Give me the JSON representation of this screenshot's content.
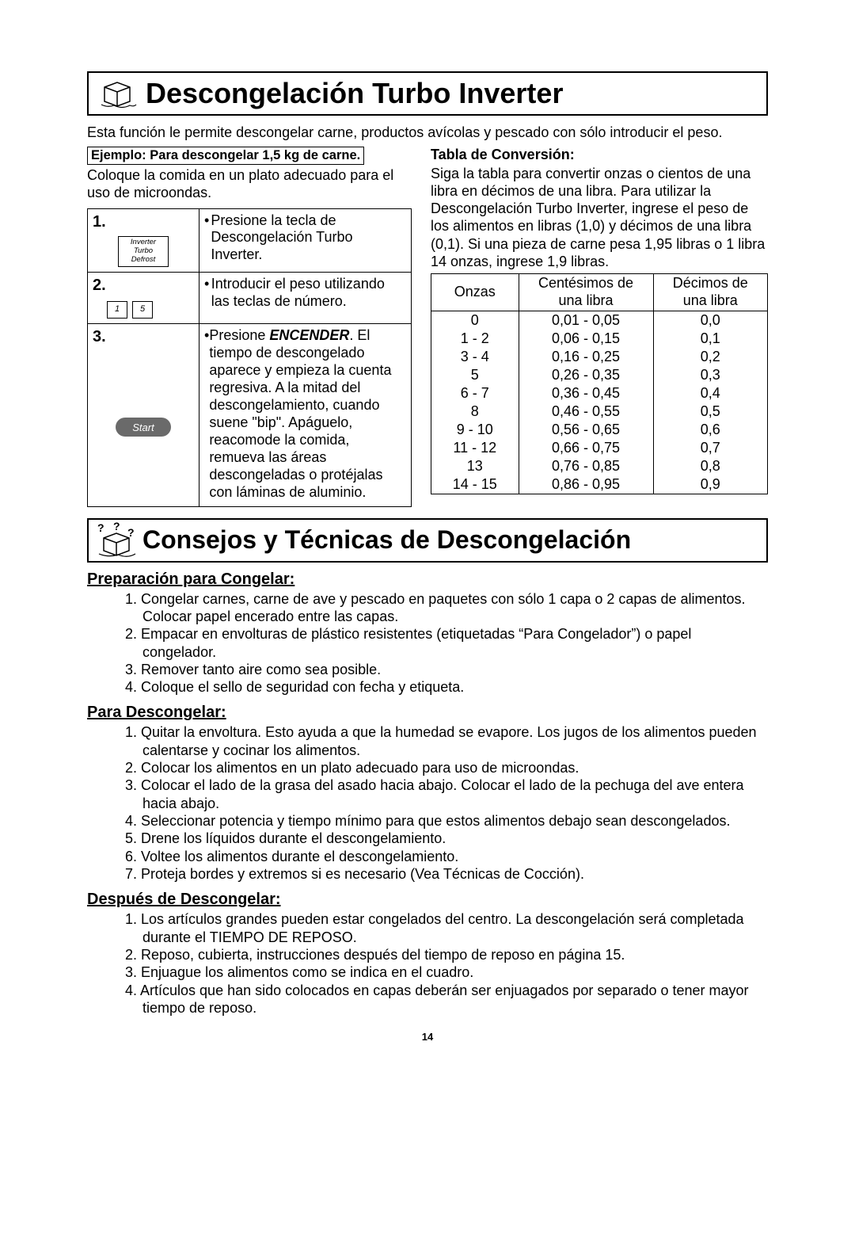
{
  "title1": "Descongelación Turbo Inverter",
  "intro": "Esta función le permite descongelar carne, productos avícolas y pescado con sólo introducir el peso.",
  "example_box": "Ejemplo: Para descongelar 1,5 kg de carne.",
  "sub_intro": "Coloque la comida en un plato adecuado para el uso de microondas.",
  "steps": {
    "s1": {
      "num": "1.",
      "btn_l1": "Inverter",
      "btn_l2": "Turbo",
      "btn_l3": "Defrost",
      "text": "Presione la tecla de Descongelación Turbo Inverter."
    },
    "s2": {
      "num": "2.",
      "k1": "1",
      "k2": "5",
      "text": "Introducir el peso utilizando las teclas de número."
    },
    "s3": {
      "num": "3.",
      "start": "Start",
      "pre": "Presione ",
      "bold": "ENCENDER",
      "post": ".",
      "rest": "El tiempo de descongelado aparece y empieza la cuenta regresiva. A la mitad del descongelamiento, cuando suene \"bip\". Apáguelo, reacomode la comida, remueva las áreas descongeladas o protéjalas con láminas de aluminio."
    }
  },
  "conv": {
    "heading": "Tabla de Conversión:",
    "intro": "Siga la tabla para convertir onzas o cientos de una libra en décimos de una libra. Para utilizar la Descongelación Turbo Inverter, ingrese el peso de los alimentos en libras (1,0) y décimos de una libra (0,1). Si una pieza de carne pesa 1,95 libras o 1 libra 14 onzas, ingrese 1,9 libras.",
    "h1": "Onzas",
    "h2a": "Centésimos de",
    "h2b": "una libra",
    "h3a": "Décimos de",
    "h3b": "una libra",
    "rows": [
      {
        "a": "0",
        "b": "0,01 - 0,05",
        "c": "0,0"
      },
      {
        "a": "1 - 2",
        "b": "0,06 - 0,15",
        "c": "0,1"
      },
      {
        "a": "3 - 4",
        "b": "0,16 - 0,25",
        "c": "0,2"
      },
      {
        "a": "5",
        "b": "0,26 - 0,35",
        "c": "0,3"
      },
      {
        "a": "6 - 7",
        "b": "0,36 - 0,45",
        "c": "0,4"
      },
      {
        "a": "8",
        "b": "0,46 - 0,55",
        "c": "0,5"
      },
      {
        "a": "9 - 10",
        "b": "0,56 - 0,65",
        "c": "0,6"
      },
      {
        "a": "11 - 12",
        "b": "0,66 - 0,75",
        "c": "0,7"
      },
      {
        "a": "13",
        "b": "0,76 - 0,85",
        "c": "0,8"
      },
      {
        "a": "14 - 15",
        "b": "0,86 - 0,95",
        "c": "0,9"
      }
    ]
  },
  "title2": "Consejos y Técnicas de Descongelación",
  "sec1": {
    "h": "Preparación para Congelar:",
    "items": [
      "1. Congelar carnes, carne de ave y pescado en paquetes con sólo 1 capa o 2 capas de alimentos. Colocar papel encerado entre las capas.",
      "2. Empacar en envolturas de plástico resistentes (etiquetadas “Para Congelador”) o papel congelador.",
      "3. Remover tanto aire como sea posible.",
      "4. Coloque el sello de seguridad con fecha y etiqueta."
    ]
  },
  "sec2": {
    "h": "Para Descongelar:",
    "items": [
      "1. Quitar la envoltura.  Esto ayuda a que la humedad se evapore. Los jugos de los alimentos pueden calentarse y cocinar los alimentos.",
      "2. Colocar los alimentos en un plato adecuado para uso de microondas.",
      "3. Colocar el lado de la grasa del asado hacia abajo. Colocar el lado de la pechuga del ave entera hacia abajo.",
      "4. Seleccionar potencia y tiempo mínimo para que estos alimentos debajo sean descongelados.",
      "5. Drene los líquidos durante el descongelamiento.",
      "6. Voltee los alimentos durante el descongelamiento.",
      "7. Proteja bordes y extremos si es necesario (Vea Técnicas de Cocción)."
    ]
  },
  "sec3": {
    "h": "Después de Descongelar:",
    "items": [
      "1. Los artículos grandes pueden estar congelados del centro. La descongelación será completada durante el TIEMPO DE REPOSO.",
      "2. Reposo, cubierta, instrucciones después del tiempo de reposo en página 15.",
      "3. Enjuague los alimentos como se indica en el cuadro.",
      "4. Artículos que han sido colocados en capas deberán ser enjuagados por separado o tener mayor tiempo de reposo."
    ]
  },
  "page_num": "14"
}
